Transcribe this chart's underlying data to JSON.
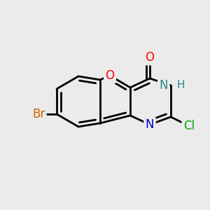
{
  "bg_color": "#ebebeb",
  "bond_color": "#000000",
  "bond_width": 2.0,
  "figsize": [
    3.0,
    3.0
  ],
  "dpi": 100,
  "atoms": {
    "O_furan": {
      "label": "O",
      "color": "#ff0000"
    },
    "NH": {
      "label": "N",
      "color": "#2a8a8a"
    },
    "H": {
      "label": "H",
      "color": "#2a8a8a"
    },
    "N_double": {
      "label": "N",
      "color": "#0000cc"
    },
    "O_keto": {
      "label": "O",
      "color": "#ff0000"
    },
    "Br": {
      "label": "Br",
      "color": "#cc6600"
    },
    "Cl": {
      "label": "Cl",
      "color": "#00aa00"
    }
  }
}
